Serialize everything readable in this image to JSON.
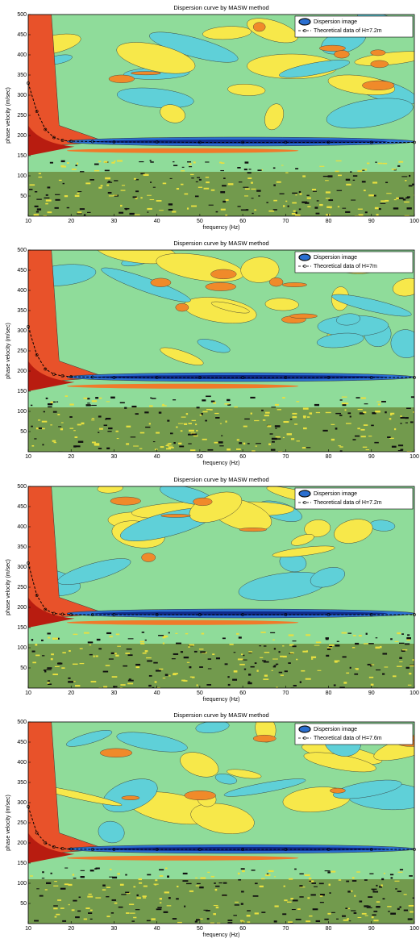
{
  "chart_data": [
    {
      "type": "line",
      "title": "Dispersion curve by MASW method",
      "x_label": "frequency (Hz)",
      "y_label": "phase velocity (m/sec)",
      "image_label": "Dispersion image",
      "x": [
        10,
        12,
        14,
        16,
        18,
        20,
        25,
        30,
        40,
        50,
        60,
        70,
        80,
        90,
        100
      ],
      "series": [
        {
          "name": "Theoretical data of H=7.2m",
          "color": "#000000",
          "values": [
            330,
            260,
            215,
            195,
            188,
            186,
            185,
            184,
            184,
            183,
            183,
            183,
            183,
            183,
            183
          ]
        }
      ],
      "xlim": [
        10,
        100
      ],
      "ylim": [
        0,
        500
      ],
      "xticks": [
        10,
        20,
        30,
        40,
        50,
        60,
        70,
        80,
        90,
        100
      ],
      "yticks": [
        50,
        100,
        150,
        200,
        250,
        300,
        350,
        400,
        450,
        500
      ],
      "legend": "upper right"
    },
    {
      "type": "line",
      "title": "Dispersion curve by MASW method",
      "x_label": "frequency (Hz)",
      "y_label": "phase velocity (m/sec)",
      "image_label": "Dispersion image",
      "x": [
        10,
        12,
        14,
        16,
        18,
        20,
        25,
        30,
        40,
        50,
        60,
        70,
        80,
        90,
        100
      ],
      "series": [
        {
          "name": "Theoretical data of H=7m",
          "color": "#000000",
          "values": [
            310,
            240,
            205,
            192,
            188,
            186,
            185,
            184,
            184,
            184,
            184,
            184,
            184,
            184,
            184
          ]
        }
      ],
      "xlim": [
        10,
        100
      ],
      "ylim": [
        0,
        500
      ],
      "xticks": [
        10,
        20,
        30,
        40,
        50,
        60,
        70,
        80,
        90,
        100
      ],
      "yticks": [
        50,
        100,
        150,
        200,
        250,
        300,
        350,
        400,
        450,
        500
      ],
      "legend": "upper right"
    },
    {
      "type": "line",
      "title": "Dispersion curve by MASW method",
      "x_label": "frequency (Hz)",
      "y_label": "phase velocity (m/sec)",
      "image_label": "Dispersion image",
      "x": [
        10,
        12,
        14,
        16,
        18,
        20,
        25,
        30,
        40,
        50,
        60,
        70,
        80,
        90,
        100
      ],
      "series": [
        {
          "name": "Theoretical data of H=7.2m",
          "color": "#000000",
          "values": [
            310,
            230,
            195,
            185,
            183,
            182,
            182,
            182,
            182,
            182,
            182,
            182,
            182,
            182,
            182
          ]
        }
      ],
      "xlim": [
        10,
        100
      ],
      "ylim": [
        0,
        500
      ],
      "xticks": [
        10,
        20,
        30,
        40,
        50,
        60,
        70,
        80,
        90,
        100
      ],
      "yticks": [
        50,
        100,
        150,
        200,
        250,
        300,
        350,
        400,
        450,
        500
      ],
      "legend": "upper right"
    },
    {
      "type": "line",
      "title": "Dispersion curve by MASW method",
      "x_label": "frequency (Hz)",
      "y_label": "phase velocity (m/sec)",
      "image_label": "Dispersion image",
      "x": [
        10,
        12,
        14,
        16,
        18,
        20,
        25,
        30,
        40,
        50,
        60,
        70,
        80,
        90,
        100
      ],
      "series": [
        {
          "name": "Theoretical data of H=7.6m",
          "color": "#000000",
          "values": [
            290,
            225,
            200,
            190,
            186,
            185,
            184,
            184,
            184,
            184,
            184,
            184,
            184,
            184,
            184
          ]
        }
      ],
      "xlim": [
        10,
        100
      ],
      "ylim": [
        0,
        500
      ],
      "xticks": [
        10,
        20,
        30,
        40,
        50,
        60,
        70,
        80,
        90,
        100
      ],
      "yticks": [
        50,
        100,
        150,
        200,
        250,
        300,
        350,
        400,
        450,
        500
      ],
      "legend": "upper right"
    }
  ]
}
